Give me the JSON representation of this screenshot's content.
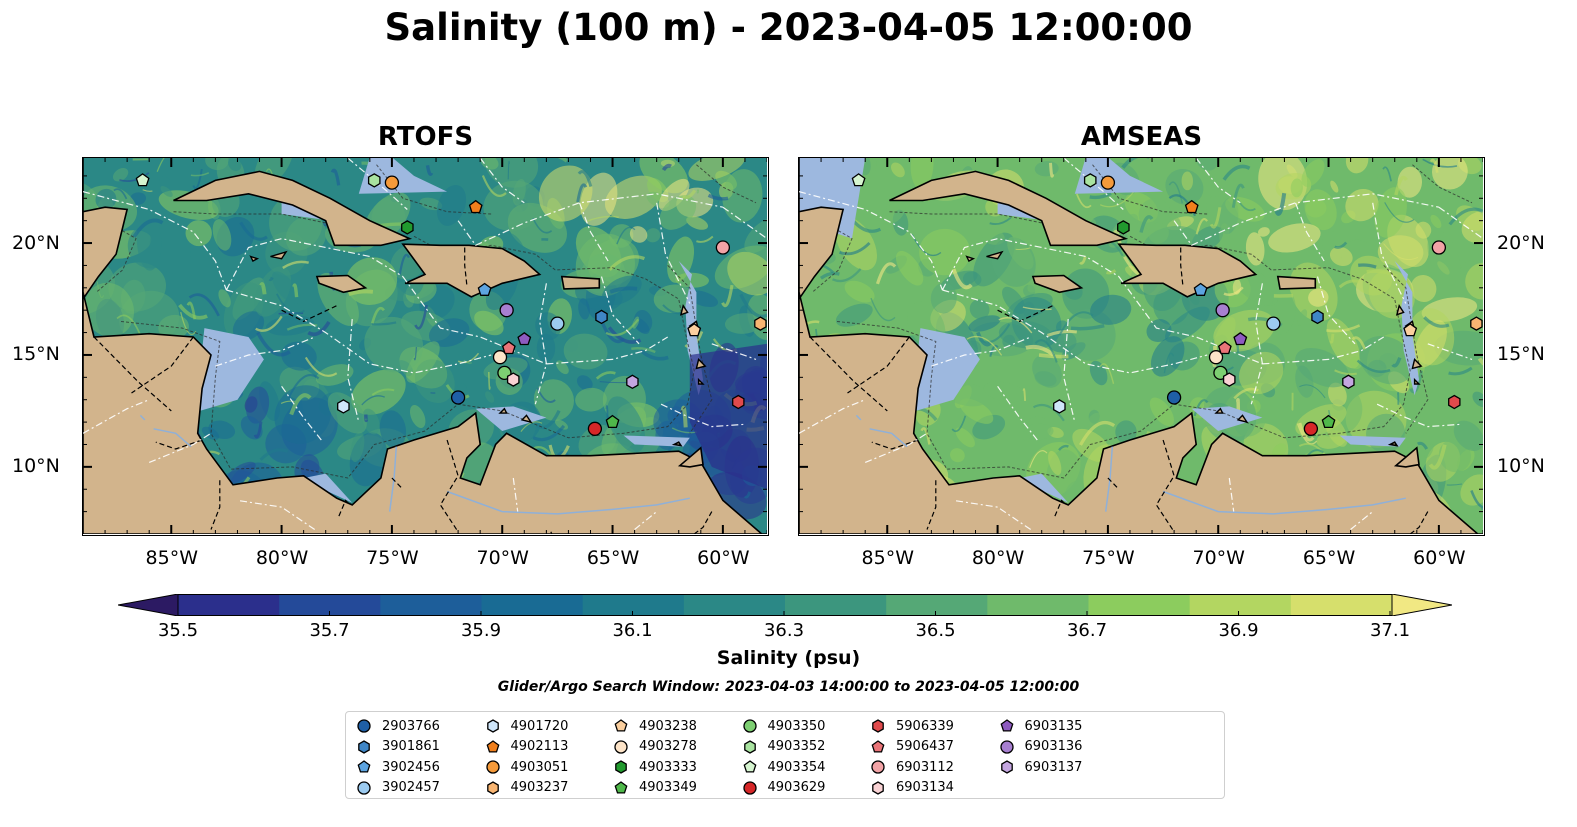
{
  "title": "Salinity (100 m) - 2023-04-05 12:00:00",
  "panels": [
    {
      "title": "RTOFS",
      "variant": "rtofs"
    },
    {
      "title": "AMSEAS",
      "variant": "amseas"
    }
  ],
  "map": {
    "lon_min": -89,
    "lon_max": -58,
    "lat_min": 7,
    "lat_max": 23.8,
    "lon_ticks": [
      {
        "lon": -85,
        "label": "85°W"
      },
      {
        "lon": -80,
        "label": "80°W"
      },
      {
        "lon": -75,
        "label": "75°W"
      },
      {
        "lon": -70,
        "label": "70°W"
      },
      {
        "lon": -65,
        "label": "65°W"
      },
      {
        "lon": -60,
        "label": "60°W"
      }
    ],
    "lat_ticks": [
      {
        "lat": 20,
        "label": "20°N"
      },
      {
        "lat": 15,
        "label": "15°N"
      },
      {
        "lat": 10,
        "label": "10°N"
      }
    ],
    "land_color": "#d2b48c",
    "shallow_color": "#9db8df"
  },
  "colorbar": {
    "label": "Salinity (psu)",
    "ticks": [
      "35.5",
      "35.7",
      "35.9",
      "36.1",
      "36.3",
      "36.5",
      "36.7",
      "36.9",
      "37.1"
    ],
    "colors": [
      "#2c1a63",
      "#2b2f8c",
      "#244a99",
      "#1d5e9a",
      "#196b94",
      "#1f7a8c",
      "#2b8886",
      "#3c967e",
      "#55a876",
      "#6fba6b",
      "#8ccc5e",
      "#b3d661",
      "#d6df6c",
      "#f1e883"
    ]
  },
  "search_window": "Glider/Argo Search Window: 2023-04-03 14:00:00 to 2023-04-05 12:00:00",
  "floats": [
    {
      "id": "2903766",
      "color": "#1f5fa6",
      "marker": "circle"
    },
    {
      "id": "3901861",
      "color": "#3f86c6",
      "marker": "hexagon"
    },
    {
      "id": "3902456",
      "color": "#5da4e0",
      "marker": "pentagon"
    },
    {
      "id": "3902457",
      "color": "#9ccbf0",
      "marker": "circle"
    },
    {
      "id": "4901720",
      "color": "#cfe6fa",
      "marker": "hexagon"
    },
    {
      "id": "4902113",
      "color": "#f07f1c",
      "marker": "pentagon"
    },
    {
      "id": "4903051",
      "color": "#f59a3a",
      "marker": "circle"
    },
    {
      "id": "4903237",
      "color": "#f8b572",
      "marker": "hexagon"
    },
    {
      "id": "4903238",
      "color": "#fbcf9e",
      "marker": "pentagon"
    },
    {
      "id": "4903278",
      "color": "#fde4c8",
      "marker": "circle"
    },
    {
      "id": "4903333",
      "color": "#219a2e",
      "marker": "hexagon"
    },
    {
      "id": "4903349",
      "color": "#4fb84a",
      "marker": "pentagon"
    },
    {
      "id": "4903350",
      "color": "#7dcf72",
      "marker": "circle"
    },
    {
      "id": "4903352",
      "color": "#a9e3a0",
      "marker": "hexagon"
    },
    {
      "id": "4903354",
      "color": "#d6f5d0",
      "marker": "pentagon"
    },
    {
      "id": "4903629",
      "color": "#d62728",
      "marker": "circle"
    },
    {
      "id": "5906339",
      "color": "#e04a4c",
      "marker": "hexagon"
    },
    {
      "id": "5906437",
      "color": "#ea7478",
      "marker": "pentagon"
    },
    {
      "id": "6903112",
      "color": "#f2a3a6",
      "marker": "circle"
    },
    {
      "id": "6903134",
      "color": "#f9d2d4",
      "marker": "hexagon"
    },
    {
      "id": "6903135",
      "color": "#8e5bc0",
      "marker": "pentagon"
    },
    {
      "id": "6903136",
      "color": "#a77fd0",
      "marker": "circle"
    },
    {
      "id": "6903137",
      "color": "#c4a6e0",
      "marker": "hexagon"
    }
  ],
  "observations": [
    {
      "id": "2903766",
      "lon": -72.0,
      "lat": 13.1
    },
    {
      "id": "3901861",
      "lon": -65.5,
      "lat": 16.7
    },
    {
      "id": "3902456",
      "lon": -70.8,
      "lat": 17.9
    },
    {
      "id": "3902457",
      "lon": -67.5,
      "lat": 16.4
    },
    {
      "id": "4901720",
      "lon": -77.2,
      "lat": 12.7
    },
    {
      "id": "4902113",
      "lon": -71.2,
      "lat": 21.6
    },
    {
      "id": "4903051",
      "lon": -75.0,
      "lat": 22.7
    },
    {
      "id": "4903237",
      "lon": -58.3,
      "lat": 16.4
    },
    {
      "id": "4903238",
      "lon": -61.3,
      "lat": 16.1
    },
    {
      "id": "4903278",
      "lon": -70.1,
      "lat": 14.9
    },
    {
      "id": "4903333",
      "lon": -74.3,
      "lat": 20.7
    },
    {
      "id": "4903349",
      "lon": -65.0,
      "lat": 12.0
    },
    {
      "id": "4903350",
      "lon": -69.9,
      "lat": 14.2
    },
    {
      "id": "4903352",
      "lon": -75.8,
      "lat": 22.8
    },
    {
      "id": "4903354",
      "lon": -86.3,
      "lat": 22.8
    },
    {
      "id": "4903629",
      "lon": -65.8,
      "lat": 11.7
    },
    {
      "id": "5906339",
      "lon": -59.3,
      "lat": 12.9
    },
    {
      "id": "5906437",
      "lon": -69.7,
      "lat": 15.3
    },
    {
      "id": "6903112",
      "lon": -60.0,
      "lat": 19.8
    },
    {
      "id": "6903134",
      "lon": -69.5,
      "lat": 13.9
    },
    {
      "id": "6903135",
      "lon": -69.0,
      "lat": 15.7
    },
    {
      "id": "6903136",
      "lon": -69.8,
      "lat": 17.0
    },
    {
      "id": "6903137",
      "lon": -64.1,
      "lat": 13.8
    }
  ]
}
